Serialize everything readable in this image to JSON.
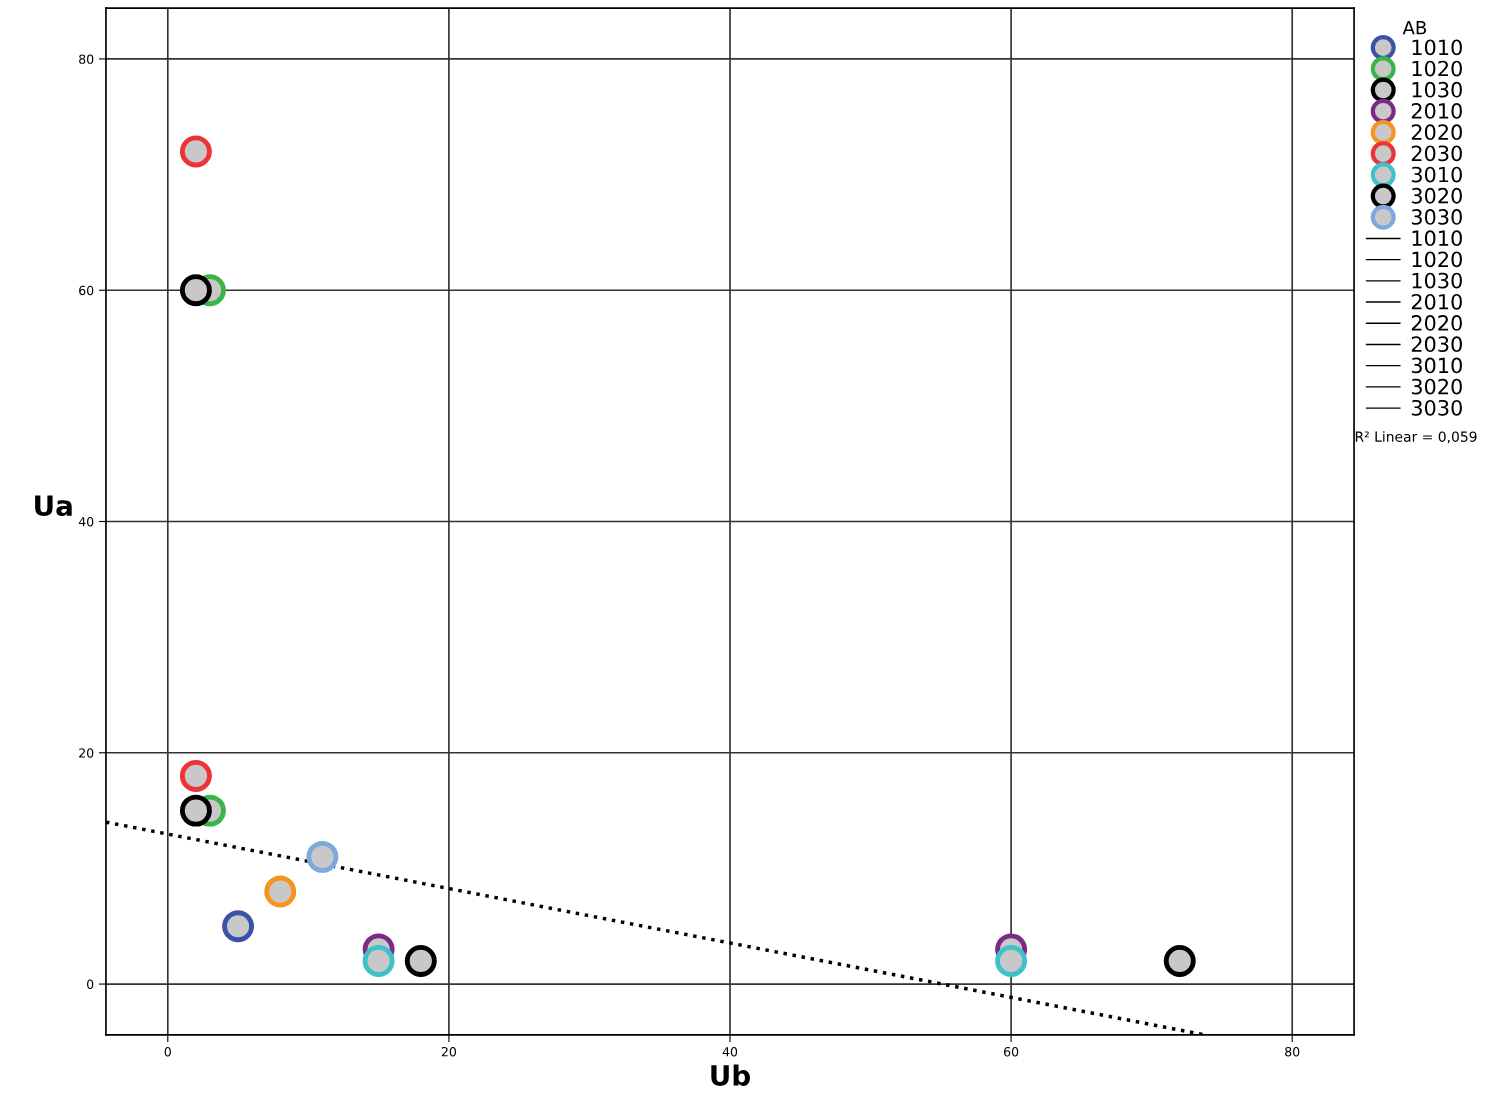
{
  "chart_data": {
    "type": "scatter",
    "xlabel": "Ub",
    "ylabel": "Ua",
    "legend_title": "AB",
    "xlim": [
      -4.4,
      84.4
    ],
    "ylim": [
      -4.4,
      84.4
    ],
    "xticks": [
      0,
      20,
      40,
      60,
      80
    ],
    "yticks": [
      0,
      20,
      40,
      60,
      80
    ],
    "grid": true,
    "legend": "right",
    "marker": "circle",
    "series": [
      {
        "name": "1010",
        "color": "#3a53a4",
        "x": [
          5
        ],
        "values": [
          5
        ]
      },
      {
        "name": "1020",
        "color": "#3ab54a",
        "x": [
          3,
          3
        ],
        "values": [
          60,
          15
        ]
      },
      {
        "name": "1030",
        "color": "#000000",
        "x": [
          2,
          2
        ],
        "values": [
          60,
          15
        ]
      },
      {
        "name": "2010",
        "color": "#7b2a86",
        "x": [
          15,
          60
        ],
        "values": [
          3,
          3
        ]
      },
      {
        "name": "2020",
        "color": "#f7941d",
        "x": [
          8
        ],
        "values": [
          8
        ]
      },
      {
        "name": "2030",
        "color": "#ee3338",
        "x": [
          2,
          2
        ],
        "values": [
          72,
          18
        ]
      },
      {
        "name": "3010",
        "color": "#3ec1c9",
        "x": [
          15,
          60
        ],
        "values": [
          2,
          2
        ]
      },
      {
        "name": "3020",
        "color": "#000000",
        "x": [
          18,
          72
        ],
        "values": [
          2,
          2
        ]
      },
      {
        "name": "3030",
        "color": "#7ea9dc",
        "x": [
          11
        ],
        "values": [
          11
        ]
      },
      {
        "name": "1010",
        "type": "line",
        "color": "#000000"
      },
      {
        "name": "1020",
        "type": "line",
        "color": "#000000"
      },
      {
        "name": "1030",
        "type": "line",
        "color": "#000000"
      },
      {
        "name": "2010",
        "type": "line",
        "color": "#000000"
      },
      {
        "name": "2020",
        "type": "line",
        "color": "#000000"
      },
      {
        "name": "2030",
        "type": "line",
        "color": "#000000"
      },
      {
        "name": "3010",
        "type": "line",
        "color": "#000000"
      },
      {
        "name": "3020",
        "type": "line",
        "color": "#000000"
      },
      {
        "name": "3030",
        "type": "line",
        "color": "#000000"
      },
      {
        "type": "line",
        "color": "#000000",
        "line_style": "dotted",
        "marker": "none",
        "x": [
          -4.4,
          73.8
        ],
        "values": [
          14.0,
          -4.4
        ]
      }
    ],
    "annotations": [
      "R² Linear = 0,059"
    ]
  }
}
